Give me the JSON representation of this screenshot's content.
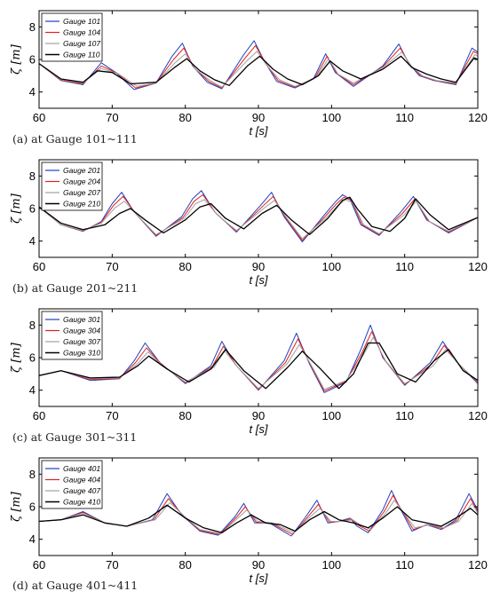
{
  "chart_data": [
    {
      "type": "line",
      "caption": "(a) at Gauge 101~111",
      "xlabel": "t [s]",
      "ylabel": "ζ [m]",
      "xlim": [
        60,
        120
      ],
      "ylim": [
        3,
        9
      ],
      "xticks": [
        "60",
        "70",
        "80",
        "90",
        "100",
        "110",
        "120"
      ],
      "yticks": [
        "4",
        "6",
        "8"
      ],
      "grid": false,
      "legend_position": "top-left",
      "series": [
        {
          "name": "Gauge 101",
          "color": "#2040c0",
          "x": [
            60,
            63,
            66,
            68.5,
            70.5,
            73,
            76,
            78.2,
            79.6,
            81,
            83,
            85,
            88,
            89.4,
            90.8,
            92.5,
            95,
            97.5,
            99.2,
            100.5,
            103,
            107,
            109.2,
            110.5,
            112,
            114,
            117,
            119.2,
            120
          ],
          "y": [
            5.75,
            4.7,
            4.45,
            5.8,
            5.2,
            4.15,
            4.55,
            6.2,
            7.0,
            5.6,
            4.6,
            4.2,
            6.3,
            7.15,
            5.9,
            4.65,
            4.25,
            4.8,
            6.35,
            5.2,
            4.35,
            5.6,
            6.95,
            5.8,
            5.0,
            4.7,
            4.45,
            6.7,
            6.45
          ]
        },
        {
          "name": "Gauge 104",
          "color": "#e02020",
          "x": [
            60,
            63,
            66,
            68.5,
            70.7,
            73.2,
            76,
            78.4,
            79.8,
            81.2,
            83.2,
            85,
            88.2,
            89.6,
            91,
            92.7,
            95,
            97.7,
            99.4,
            100.7,
            103,
            107,
            109.4,
            110.7,
            112.2,
            114.2,
            117,
            119.4,
            120
          ],
          "y": [
            5.75,
            4.72,
            4.5,
            5.6,
            5.15,
            4.25,
            4.55,
            6.0,
            6.7,
            5.5,
            4.65,
            4.25,
            6.1,
            6.85,
            5.75,
            4.7,
            4.3,
            4.85,
            6.2,
            5.15,
            4.45,
            5.55,
            6.7,
            5.7,
            5.0,
            4.7,
            4.5,
            6.5,
            6.35
          ]
        },
        {
          "name": "Gauge 107",
          "color": "#a0a0a0",
          "x": [
            60,
            63,
            66,
            68.5,
            70.9,
            73.4,
            76,
            78.6,
            80,
            81.4,
            83.4,
            85,
            88.4,
            89.8,
            91.2,
            92.9,
            95,
            97.9,
            99.6,
            100.9,
            103,
            107,
            109.6,
            110.9,
            112.4,
            114.4,
            117,
            119.6,
            120
          ],
          "y": [
            5.75,
            4.75,
            4.55,
            5.45,
            5.1,
            4.35,
            4.55,
            5.8,
            6.35,
            5.4,
            4.7,
            4.3,
            5.9,
            6.5,
            5.6,
            4.75,
            4.35,
            4.9,
            6.05,
            5.1,
            4.55,
            5.5,
            6.45,
            5.6,
            5.0,
            4.7,
            4.55,
            6.3,
            6.2
          ]
        },
        {
          "name": "Gauge 110",
          "color": "#000000",
          "x": [
            60,
            63,
            66,
            68,
            70,
            72.5,
            76,
            78.5,
            80.2,
            82,
            84,
            86,
            88.5,
            90.2,
            92,
            94,
            96,
            98.2,
            99.8,
            101.5,
            104,
            107,
            109.5,
            111,
            113,
            115,
            117,
            119.5,
            120
          ],
          "y": [
            5.75,
            4.8,
            4.6,
            5.3,
            5.2,
            4.5,
            4.6,
            5.5,
            6.05,
            5.3,
            4.75,
            4.4,
            5.6,
            6.2,
            5.4,
            4.8,
            4.45,
            5.0,
            5.9,
            5.3,
            4.8,
            5.4,
            6.2,
            5.5,
            5.1,
            4.8,
            4.6,
            6.1,
            6.0
          ]
        }
      ]
    },
    {
      "type": "line",
      "caption": "(b) at Gauge 201~211",
      "xlabel": "t [s]",
      "ylabel": "ζ [m]",
      "xlim": [
        60,
        120
      ],
      "ylim": [
        3,
        9
      ],
      "xticks": [
        "60",
        "70",
        "80",
        "90",
        "100",
        "110",
        "120"
      ],
      "yticks": [
        "4",
        "6",
        "8"
      ],
      "grid": false,
      "legend_position": "top-left",
      "series": [
        {
          "name": "Gauge 201",
          "color": "#2040c0",
          "x": [
            60,
            63,
            66,
            68.5,
            70,
            71.3,
            73,
            76,
            79.5,
            81,
            82.2,
            84,
            87,
            90.3,
            91.8,
            93.5,
            96,
            99,
            100.5,
            101.5,
            102.5,
            104,
            106.5,
            109.5,
            111.2,
            113,
            116,
            120
          ],
          "y": [
            6.1,
            5.0,
            4.6,
            5.2,
            6.3,
            7.0,
            5.8,
            4.3,
            5.5,
            6.6,
            7.1,
            5.8,
            4.55,
            6.2,
            7.0,
            5.5,
            3.95,
            5.6,
            6.4,
            6.85,
            6.6,
            5.0,
            4.35,
            5.8,
            6.75,
            5.3,
            4.5,
            5.45
          ]
        },
        {
          "name": "Gauge 204",
          "color": "#e02020",
          "x": [
            60,
            63,
            66,
            68.5,
            70.2,
            71.5,
            73.2,
            76,
            79.7,
            81.2,
            82.4,
            84.2,
            87,
            90.5,
            92,
            93.7,
            96,
            99.2,
            100.7,
            101.7,
            102.7,
            104.2,
            106.5,
            109.7,
            111.4,
            113.2,
            116,
            120
          ],
          "y": [
            6.1,
            5.0,
            4.62,
            5.15,
            6.2,
            6.75,
            5.7,
            4.35,
            5.45,
            6.45,
            6.85,
            5.7,
            4.6,
            6.1,
            6.75,
            5.45,
            4.05,
            5.55,
            6.3,
            6.7,
            6.5,
            5.0,
            4.4,
            5.7,
            6.6,
            5.25,
            4.55,
            5.45
          ]
        },
        {
          "name": "Gauge 207",
          "color": "#a0a0a0",
          "x": [
            60,
            63,
            66,
            68.5,
            70.4,
            71.7,
            73.4,
            76,
            79.9,
            81.4,
            82.6,
            84.4,
            87,
            90.7,
            92.2,
            93.9,
            96,
            99.4,
            100.9,
            101.9,
            102.9,
            104.4,
            106.5,
            109.9,
            111.6,
            113.4,
            116,
            120
          ],
          "y": [
            6.1,
            5.0,
            4.65,
            5.1,
            6.05,
            6.45,
            5.6,
            4.4,
            5.4,
            6.3,
            6.55,
            5.6,
            4.65,
            6.0,
            6.5,
            5.4,
            4.15,
            5.5,
            6.2,
            6.55,
            6.35,
            5.0,
            4.45,
            5.6,
            6.45,
            5.2,
            4.6,
            5.45
          ]
        },
        {
          "name": "Gauge 210",
          "color": "#000000",
          "x": [
            60,
            63,
            66,
            69,
            71,
            72.5,
            74.5,
            77,
            80,
            82,
            83.5,
            85.5,
            88,
            90.5,
            92.5,
            94.5,
            97,
            99.5,
            101.5,
            102.5,
            103.5,
            105.5,
            108,
            110,
            111.5,
            113.5,
            116,
            120
          ],
          "y": [
            6.1,
            5.1,
            4.7,
            5.0,
            5.7,
            6.0,
            5.3,
            4.5,
            5.3,
            6.1,
            6.3,
            5.4,
            4.75,
            5.7,
            6.2,
            5.3,
            4.4,
            5.4,
            6.5,
            6.7,
            6.0,
            4.9,
            4.6,
            5.4,
            6.6,
            5.6,
            4.7,
            5.45
          ]
        }
      ]
    },
    {
      "type": "line",
      "caption": "(c) at Gauge 301~311",
      "xlabel": "t [s]",
      "ylabel": "ζ [m]",
      "xlim": [
        60,
        120
      ],
      "ylim": [
        3,
        9
      ],
      "xticks": [
        "60",
        "70",
        "80",
        "90",
        "100",
        "110",
        "120"
      ],
      "yticks": [
        "4",
        "6",
        "8"
      ],
      "grid": false,
      "legend_position": "top-left",
      "series": [
        {
          "name": "Gauge 301",
          "color": "#2040c0",
          "x": [
            60,
            63,
            67,
            71,
            73,
            74.5,
            76.5,
            80,
            83.5,
            85,
            86.8,
            90,
            93.5,
            95.2,
            97,
            99,
            102,
            104,
            105.3,
            107,
            110,
            113.5,
            115.2,
            117,
            120
          ],
          "y": [
            4.9,
            5.2,
            4.6,
            4.7,
            5.8,
            6.9,
            5.7,
            4.4,
            5.5,
            7.0,
            5.6,
            4.0,
            5.8,
            7.5,
            5.6,
            3.85,
            4.5,
            6.5,
            8.0,
            6.0,
            4.3,
            5.7,
            7.0,
            5.8,
            4.4
          ]
        },
        {
          "name": "Gauge 304",
          "color": "#e02020",
          "x": [
            60,
            63,
            67,
            71,
            73.2,
            74.7,
            76.7,
            80,
            83.7,
            85.2,
            87,
            90,
            93.7,
            95.4,
            97.2,
            99,
            102,
            104.2,
            105.5,
            107.2,
            110,
            113.7,
            115.4,
            117.2,
            120
          ],
          "y": [
            4.9,
            5.2,
            4.65,
            4.72,
            5.7,
            6.6,
            5.6,
            4.45,
            5.45,
            6.7,
            5.5,
            4.05,
            5.7,
            7.15,
            5.5,
            3.95,
            4.55,
            6.35,
            7.6,
            5.9,
            4.35,
            5.6,
            6.75,
            5.7,
            4.45
          ]
        },
        {
          "name": "Gauge 307",
          "color": "#a0a0a0",
          "x": [
            60,
            63,
            67,
            71,
            73.4,
            74.9,
            76.9,
            80,
            83.9,
            85.4,
            87.2,
            90,
            93.9,
            95.6,
            97.4,
            99,
            102,
            104.4,
            105.7,
            107.4,
            110,
            113.9,
            115.6,
            117.4,
            120
          ],
          "y": [
            4.9,
            5.2,
            4.7,
            4.75,
            5.6,
            6.35,
            5.5,
            4.5,
            5.4,
            6.4,
            5.4,
            4.1,
            5.6,
            6.8,
            5.4,
            4.05,
            4.6,
            6.2,
            7.25,
            5.8,
            4.4,
            5.5,
            6.5,
            5.6,
            4.5
          ]
        },
        {
          "name": "Gauge 310",
          "color": "#000000",
          "x": [
            60,
            63,
            67,
            71,
            73.5,
            75,
            77.5,
            80.5,
            83.5,
            85.5,
            88,
            91,
            94,
            96,
            98.5,
            101,
            103,
            105,
            106.5,
            109,
            111.5,
            114,
            116,
            118,
            120
          ],
          "y": [
            4.9,
            5.2,
            4.75,
            4.8,
            5.5,
            6.1,
            5.3,
            4.5,
            5.3,
            6.5,
            5.2,
            4.1,
            5.4,
            6.4,
            5.3,
            4.1,
            5.0,
            6.9,
            6.9,
            5.0,
            4.5,
            5.8,
            6.5,
            5.2,
            4.6
          ]
        }
      ]
    },
    {
      "type": "line",
      "caption": "(d) at Gauge 401~411",
      "xlabel": "t [s]",
      "ylabel": "ζ [m]",
      "xlim": [
        60,
        120
      ],
      "ylim": [
        3,
        9
      ],
      "xticks": [
        "60",
        "70",
        "80",
        "90",
        "100",
        "110",
        "120"
      ],
      "yticks": [
        "4",
        "6",
        "8"
      ],
      "grid": false,
      "legend_position": "top-left",
      "series": [
        {
          "name": "Gauge 401",
          "color": "#2040c0",
          "x": [
            60,
            63,
            66,
            69,
            72,
            75.5,
            77.5,
            79.5,
            82,
            84.5,
            86.8,
            88,
            89.5,
            91.5,
            93,
            94.5,
            96.5,
            98,
            99.5,
            101,
            102.5,
            103.5,
            105,
            107,
            108.2,
            109.5,
            111,
            113,
            115,
            117,
            118.8,
            120
          ],
          "y": [
            5.1,
            5.2,
            5.7,
            5.0,
            4.8,
            5.2,
            6.8,
            5.5,
            4.5,
            4.25,
            5.4,
            6.2,
            5.0,
            5.0,
            4.6,
            4.2,
            5.4,
            6.4,
            5.0,
            5.1,
            5.3,
            4.8,
            4.4,
            5.8,
            7.0,
            5.8,
            4.5,
            4.9,
            4.6,
            5.2,
            6.8,
            5.8
          ]
        },
        {
          "name": "Gauge 404",
          "color": "#e02020",
          "x": [
            60,
            63,
            66,
            69,
            72,
            75.7,
            77.7,
            79.7,
            82,
            84.7,
            87,
            88.2,
            89.7,
            91.7,
            93.2,
            94.7,
            96.7,
            98.2,
            99.7,
            101.2,
            102.7,
            103.7,
            105.2,
            107.2,
            108.4,
            109.7,
            111.2,
            113.2,
            115.2,
            117.2,
            119,
            120
          ],
          "y": [
            5.1,
            5.2,
            5.65,
            5.0,
            4.8,
            5.2,
            6.5,
            5.45,
            4.55,
            4.3,
            5.35,
            6.0,
            5.05,
            5.0,
            4.65,
            4.3,
            5.35,
            6.15,
            5.05,
            5.1,
            5.25,
            4.85,
            4.5,
            5.7,
            6.7,
            5.7,
            4.6,
            4.9,
            4.65,
            5.15,
            6.5,
            5.7
          ]
        },
        {
          "name": "Gauge 407",
          "color": "#a0a0a0",
          "x": [
            60,
            63,
            66,
            69,
            72,
            75.9,
            77.9,
            79.9,
            82,
            84.9,
            87.2,
            88.4,
            89.9,
            91.9,
            93.4,
            94.9,
            96.9,
            98.4,
            99.9,
            101.4,
            102.9,
            103.9,
            105.4,
            107.4,
            108.6,
            109.9,
            111.4,
            113.4,
            115.4,
            117.4,
            119.2,
            120
          ],
          "y": [
            5.1,
            5.2,
            5.6,
            5.0,
            4.8,
            5.2,
            6.25,
            5.4,
            4.6,
            4.35,
            5.3,
            5.8,
            5.1,
            5.0,
            4.7,
            4.4,
            5.3,
            5.9,
            5.1,
            5.1,
            5.2,
            4.9,
            4.6,
            5.6,
            6.4,
            5.6,
            4.7,
            4.9,
            4.7,
            5.1,
            6.2,
            5.6
          ]
        },
        {
          "name": "Gauge 410",
          "color": "#000000",
          "x": [
            60,
            63,
            66,
            69,
            72,
            75,
            77.5,
            80,
            82.5,
            85,
            87,
            89,
            91,
            93,
            95,
            97,
            99,
            101,
            103,
            105,
            107,
            109,
            111,
            113,
            115,
            117,
            119,
            120
          ],
          "y": [
            5.1,
            5.2,
            5.5,
            5.0,
            4.8,
            5.3,
            6.1,
            5.3,
            4.7,
            4.4,
            5.0,
            5.5,
            5.0,
            4.9,
            4.5,
            5.2,
            5.7,
            5.2,
            5.0,
            4.7,
            5.3,
            6.0,
            5.2,
            5.0,
            4.8,
            5.3,
            5.9,
            5.5
          ]
        }
      ]
    }
  ]
}
